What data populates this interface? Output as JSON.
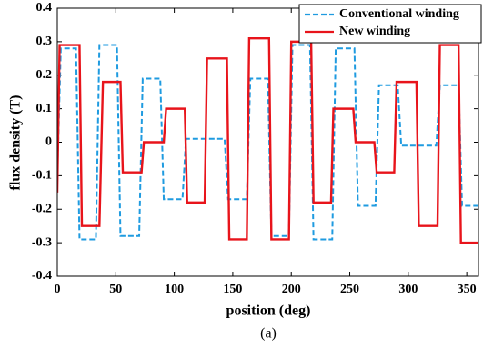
{
  "chart_data": {
    "type": "line",
    "x_label": "position (deg)",
    "y_label": "flux density (T)",
    "caption": "(a)",
    "xlim": [
      0,
      360
    ],
    "xticks": [
      0,
      50,
      100,
      150,
      200,
      250,
      300,
      350
    ],
    "ylim": [
      -0.4,
      0.4
    ],
    "yticks": [
      0.4,
      0.3,
      0.2,
      0.1,
      0,
      -0.1,
      -0.2,
      -0.3,
      -0.4
    ],
    "grid": false,
    "legend": "top-right",
    "series": [
      {
        "name": "Conventional winding",
        "color": "#1f9be0",
        "dash": true,
        "x": [
          0,
          3,
          16,
          19,
          33,
          36,
          51,
          54,
          70,
          73,
          88,
          91,
          107,
          110,
          143,
          146,
          162,
          165,
          180,
          183,
          198,
          201,
          216,
          219,
          235,
          238,
          254,
          257,
          272,
          275,
          291,
          294,
          324,
          327,
          343,
          346,
          360
        ],
        "values": [
          -0.1,
          0.28,
          0.28,
          -0.29,
          -0.29,
          0.29,
          0.29,
          -0.28,
          -0.28,
          0.19,
          0.19,
          -0.17,
          -0.17,
          0.01,
          0.01,
          -0.17,
          -0.17,
          0.19,
          0.19,
          -0.28,
          -0.28,
          0.29,
          0.29,
          -0.29,
          -0.29,
          0.28,
          0.28,
          -0.19,
          -0.19,
          0.17,
          0.17,
          -0.01,
          -0.01,
          0.17,
          0.17,
          -0.19,
          -0.19
        ]
      },
      {
        "name": "New winding",
        "color": "#e8141b",
        "dash": false,
        "x": [
          0,
          2,
          19,
          21,
          36,
          39,
          54,
          56,
          72,
          74,
          91,
          93,
          109,
          111,
          126,
          128,
          145,
          147,
          162,
          164,
          181,
          183,
          198,
          200,
          217,
          219,
          234,
          236,
          253,
          255,
          271,
          273,
          288,
          290,
          307,
          309,
          325,
          327,
          343,
          345,
          360
        ],
        "values": [
          -0.15,
          0.29,
          0.29,
          -0.25,
          -0.25,
          0.18,
          0.18,
          -0.09,
          -0.09,
          0,
          0,
          0.1,
          0.1,
          -0.18,
          -0.18,
          0.25,
          0.25,
          -0.29,
          -0.29,
          0.31,
          0.31,
          -0.29,
          -0.29,
          0.3,
          0.3,
          -0.18,
          -0.18,
          0.1,
          0.1,
          0,
          0,
          -0.09,
          -0.09,
          0.18,
          0.18,
          -0.25,
          -0.25,
          0.29,
          0.29,
          -0.3,
          -0.3
        ]
      }
    ]
  }
}
